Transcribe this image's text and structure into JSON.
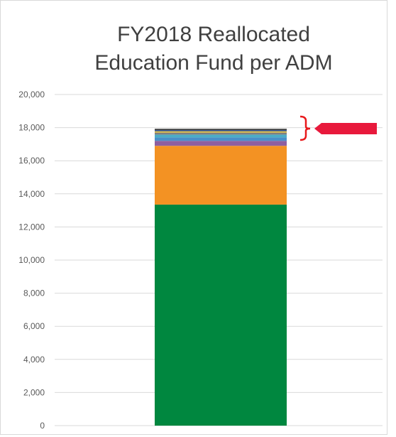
{
  "chart_data": {
    "type": "bar",
    "stacked": true,
    "title": [
      "FY2018 Reallocated",
      "Education Fund per ADM"
    ],
    "categories": [
      ""
    ],
    "series": [
      {
        "values": [
          13350
        ],
        "color": "#00873f"
      },
      {
        "values": [
          3550
        ],
        "color": "#f39223"
      },
      {
        "values": [
          300
        ],
        "color": "#8e5fa0"
      },
      {
        "values": [
          200
        ],
        "color": "#4a8fc9"
      },
      {
        "values": [
          180
        ],
        "color": "#4bacc6"
      },
      {
        "values": [
          120
        ],
        "color": "#7f7f7f"
      },
      {
        "values": [
          80
        ],
        "color": "#e7c43e"
      },
      {
        "values": [
          70
        ],
        "color": "#2c4f8c"
      },
      {
        "values": [
          80
        ],
        "color": "#404040"
      }
    ],
    "ylim": [
      0,
      20000
    ],
    "yticks": [
      "0",
      "2,000",
      "4,000",
      "6,000",
      "8,000",
      "10,000",
      "12,000",
      "14,000",
      "16,000",
      "18,000",
      "20,000"
    ],
    "grid": true,
    "bracket_color": "#e8191b",
    "arrow_color": "#e8193c"
  }
}
